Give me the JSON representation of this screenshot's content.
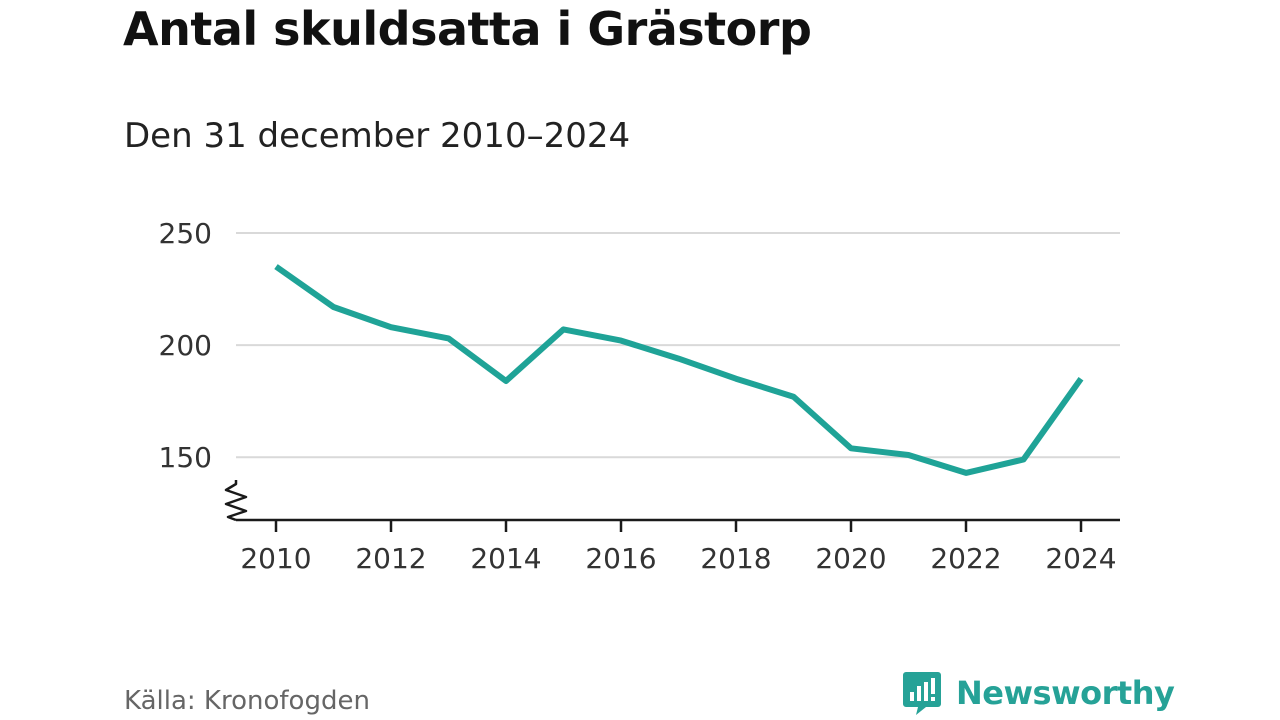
{
  "header": {
    "title": "Antal skuldsatta i Grästorp",
    "subtitle": "Den 31 december 2010–2024"
  },
  "chart_data": {
    "type": "line",
    "title": "Antal skuldsatta i Grästorp",
    "subtitle": "Den 31 december 2010–2024",
    "xlabel": "",
    "ylabel": "",
    "x": [
      2010,
      2011,
      2012,
      2013,
      2014,
      2015,
      2016,
      2017,
      2018,
      2019,
      2020,
      2021,
      2022,
      2023,
      2024
    ],
    "series": [
      {
        "name": "Antal skuldsatta",
        "values": [
          235,
          217,
          208,
          203,
          184,
          207,
          202,
          194,
          185,
          177,
          154,
          151,
          143,
          149,
          185
        ],
        "color": "#1fa397"
      }
    ],
    "xticks": [
      "2010",
      "2012",
      "2014",
      "2016",
      "2018",
      "2020",
      "2022",
      "2024"
    ],
    "yticks": [
      "250",
      "200",
      "150"
    ],
    "ylim": [
      122,
      250
    ],
    "xlim": [
      2010,
      2024
    ],
    "grid": true,
    "axis_break": true
  },
  "footer": {
    "source": "Källa: Kronofogden",
    "brand": "Newsworthy",
    "brand_color": "#26a297"
  }
}
